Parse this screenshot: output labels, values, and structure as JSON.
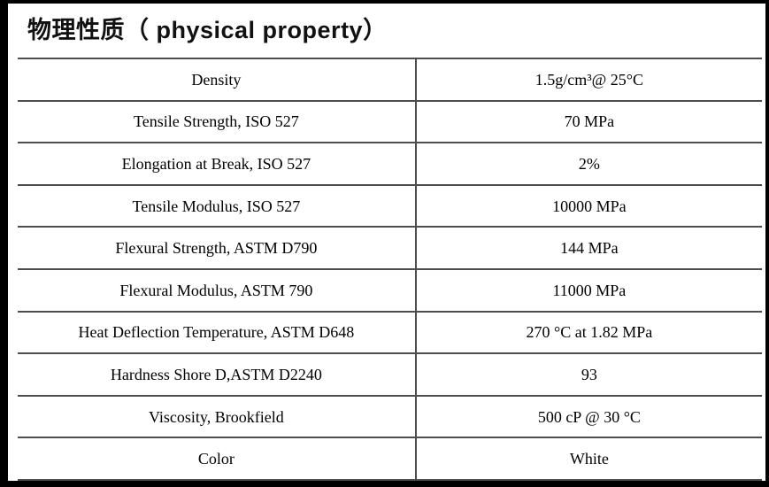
{
  "title": "物理性质（ physical property）",
  "colors": {
    "frame": "#000000",
    "rule_lines": "#4d4d4d",
    "text": "#000000",
    "background": "#ffffff"
  },
  "table": {
    "rows": [
      {
        "property": "Density",
        "value": "1.5g/cm³@ 25°C"
      },
      {
        "property": "Tensile Strength, ISO 527",
        "value": "70 MPa"
      },
      {
        "property": "Elongation at Break, ISO 527",
        "value": "2%"
      },
      {
        "property": "Tensile Modulus, ISO 527",
        "value": "10000 MPa"
      },
      {
        "property": "Flexural Strength, ASTM D790",
        "value": "144 MPa"
      },
      {
        "property": "Flexural Modulus, ASTM 790",
        "value": "11000 MPa"
      },
      {
        "property": "Heat Deflection Temperature, ASTM D648",
        "value": "270 °C at 1.82 MPa"
      },
      {
        "property": "Hardness Shore D,ASTM D2240",
        "value": "93"
      },
      {
        "property": "Viscosity, Brookfield",
        "value": "500 cP @ 30 °C"
      },
      {
        "property": "Color",
        "value": "White"
      }
    ]
  }
}
